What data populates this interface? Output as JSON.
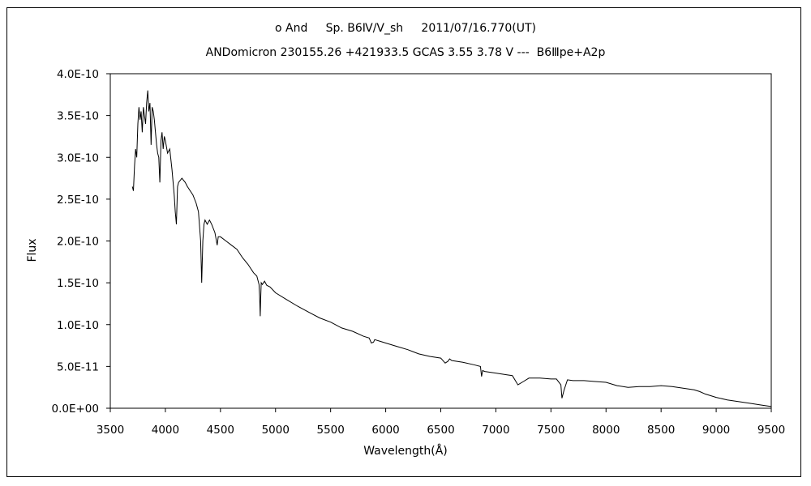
{
  "title_line1": "ο And     Sp. B6Ⅳ/V_sh     2011/07/16.770(UT)",
  "title_line2": "ANDomicron 230155.26 +421933.5 GCAS 3.55 3.78 V ---  B6Ⅲpe+A2p",
  "chart_data": {
    "type": "line",
    "title": "ο And     Sp. B6Ⅳ/V_sh     2011/07/16.770(UT)",
    "subtitle": "ANDomicron 230155.26 +421933.5 GCAS 3.55 3.78 V ---  B6Ⅲpe+A2p",
    "xlabel": "Wavelength(Å)",
    "ylabel": "Flux",
    "xlim": [
      3500,
      9500
    ],
    "ylim": [
      0,
      4e-10
    ],
    "x_ticks": [
      3500,
      4000,
      4500,
      5000,
      5500,
      6000,
      6500,
      7000,
      7500,
      8000,
      8500,
      9000,
      9500
    ],
    "x_tick_labels": [
      "3500",
      "4000",
      "4500",
      "5000",
      "5500",
      "6000",
      "6500",
      "7000",
      "7500",
      "8000",
      "8500",
      "9000",
      "9500"
    ],
    "y_ticks": [
      0,
      5e-11,
      1e-10,
      1.5e-10,
      2e-10,
      2.5e-10,
      3e-10,
      3.5e-10,
      4e-10
    ],
    "y_tick_labels": [
      "0.0E+00",
      "5.0E-11",
      "1.0E-10",
      "1.5E-10",
      "2.0E-10",
      "2.5E-10",
      "3.0E-10",
      "3.5E-10",
      "4.0E-10"
    ],
    "grid": false,
    "legend": "none",
    "line_color": "#000000",
    "series": [
      {
        "x": [
          3700,
          3710,
          3720,
          3730,
          3740,
          3750,
          3760,
          3770,
          3780,
          3790,
          3800,
          3810,
          3820,
          3830,
          3840,
          3850,
          3860,
          3870,
          3880,
          3890,
          3900,
          3910,
          3920,
          3930,
          3940,
          3950,
          3960,
          3970,
          3980,
          3990,
          4000,
          4020,
          4040,
          4060,
          4080,
          4090,
          4100,
          4110,
          4120,
          4150,
          4180,
          4200,
          4250,
          4280,
          4300,
          4320,
          4330,
          4340,
          4350,
          4360,
          4380,
          4400,
          4420,
          4450,
          4470,
          4480,
          4500,
          4550,
          4600,
          4650,
          4700,
          4750,
          4800,
          4830,
          4850,
          4855,
          4861,
          4865,
          4870,
          4880,
          4900,
          4920,
          4950,
          5000,
          5100,
          5200,
          5300,
          5400,
          5500,
          5600,
          5700,
          5800,
          5850,
          5870,
          5890,
          5900,
          5950,
          6000,
          6100,
          6200,
          6300,
          6400,
          6500,
          6540,
          6563,
          6580,
          6600,
          6700,
          6800,
          6860,
          6870,
          6880,
          6900,
          7000,
          7100,
          7150,
          7200,
          7250,
          7300,
          7400,
          7500,
          7550,
          7590,
          7600,
          7620,
          7650,
          7700,
          7800,
          7900,
          8000,
          8100,
          8200,
          8300,
          8400,
          8500,
          8600,
          8700,
          8800,
          8850,
          8900,
          9000,
          9100,
          9200,
          9300,
          9400,
          9500
        ],
        "y": [
          2.65e-10,
          2.6e-10,
          2.9e-10,
          3.1e-10,
          3e-10,
          3.4e-10,
          3.6e-10,
          3.45e-10,
          3.55e-10,
          3.3e-10,
          3.6e-10,
          3.5e-10,
          3.4e-10,
          3.65e-10,
          3.8e-10,
          3.55e-10,
          3.65e-10,
          3.15e-10,
          3.6e-10,
          3.55e-10,
          3.45e-10,
          3.3e-10,
          3.15e-10,
          3.05e-10,
          3e-10,
          2.7e-10,
          3.2e-10,
          3.3e-10,
          3.1e-10,
          3.25e-10,
          3.2e-10,
          3.05e-10,
          3.1e-10,
          2.85e-10,
          2.55e-10,
          2.35e-10,
          2.2e-10,
          2.65e-10,
          2.7e-10,
          2.75e-10,
          2.7e-10,
          2.65e-10,
          2.55e-10,
          2.45e-10,
          2.35e-10,
          2e-10,
          1.5e-10,
          2e-10,
          2.2e-10,
          2.25e-10,
          2.2e-10,
          2.25e-10,
          2.2e-10,
          2.1e-10,
          1.95e-10,
          2.05e-10,
          2.05e-10,
          2e-10,
          1.95e-10,
          1.9e-10,
          1.8e-10,
          1.72e-10,
          1.62e-10,
          1.58e-10,
          1.48e-10,
          1.35e-10,
          1.1e-10,
          1.3e-10,
          1.5e-10,
          1.48e-10,
          1.52e-10,
          1.47e-10,
          1.45e-10,
          1.38e-10,
          1.3e-10,
          1.22e-10,
          1.15e-10,
          1.08e-10,
          1.03e-10,
          9.6e-11,
          9.2e-11,
          8.6e-11,
          8.4e-11,
          7.8e-11,
          7.9e-11,
          8.2e-11,
          8e-11,
          7.8e-11,
          7.4e-11,
          7e-11,
          6.5e-11,
          6.2e-11,
          6e-11,
          5.4e-11,
          5.6e-11,
          5.9e-11,
          5.7e-11,
          5.5e-11,
          5.2e-11,
          5e-11,
          3.8e-11,
          4.5e-11,
          4.4e-11,
          4.2e-11,
          4e-11,
          3.9e-11,
          2.8e-11,
          3.2e-11,
          3.6e-11,
          3.6e-11,
          3.5e-11,
          3.5e-11,
          2.8e-11,
          1.2e-11,
          2.2e-11,
          3.4e-11,
          3.3e-11,
          3.3e-11,
          3.2e-11,
          3.1e-11,
          2.7e-11,
          2.5e-11,
          2.6e-11,
          2.6e-11,
          2.7e-11,
          2.6e-11,
          2.4e-11,
          2.2e-11,
          2e-11,
          1.7e-11,
          1.3e-11,
          1e-11,
          8e-12,
          6e-12,
          4e-12,
          2e-12
        ]
      }
    ]
  }
}
